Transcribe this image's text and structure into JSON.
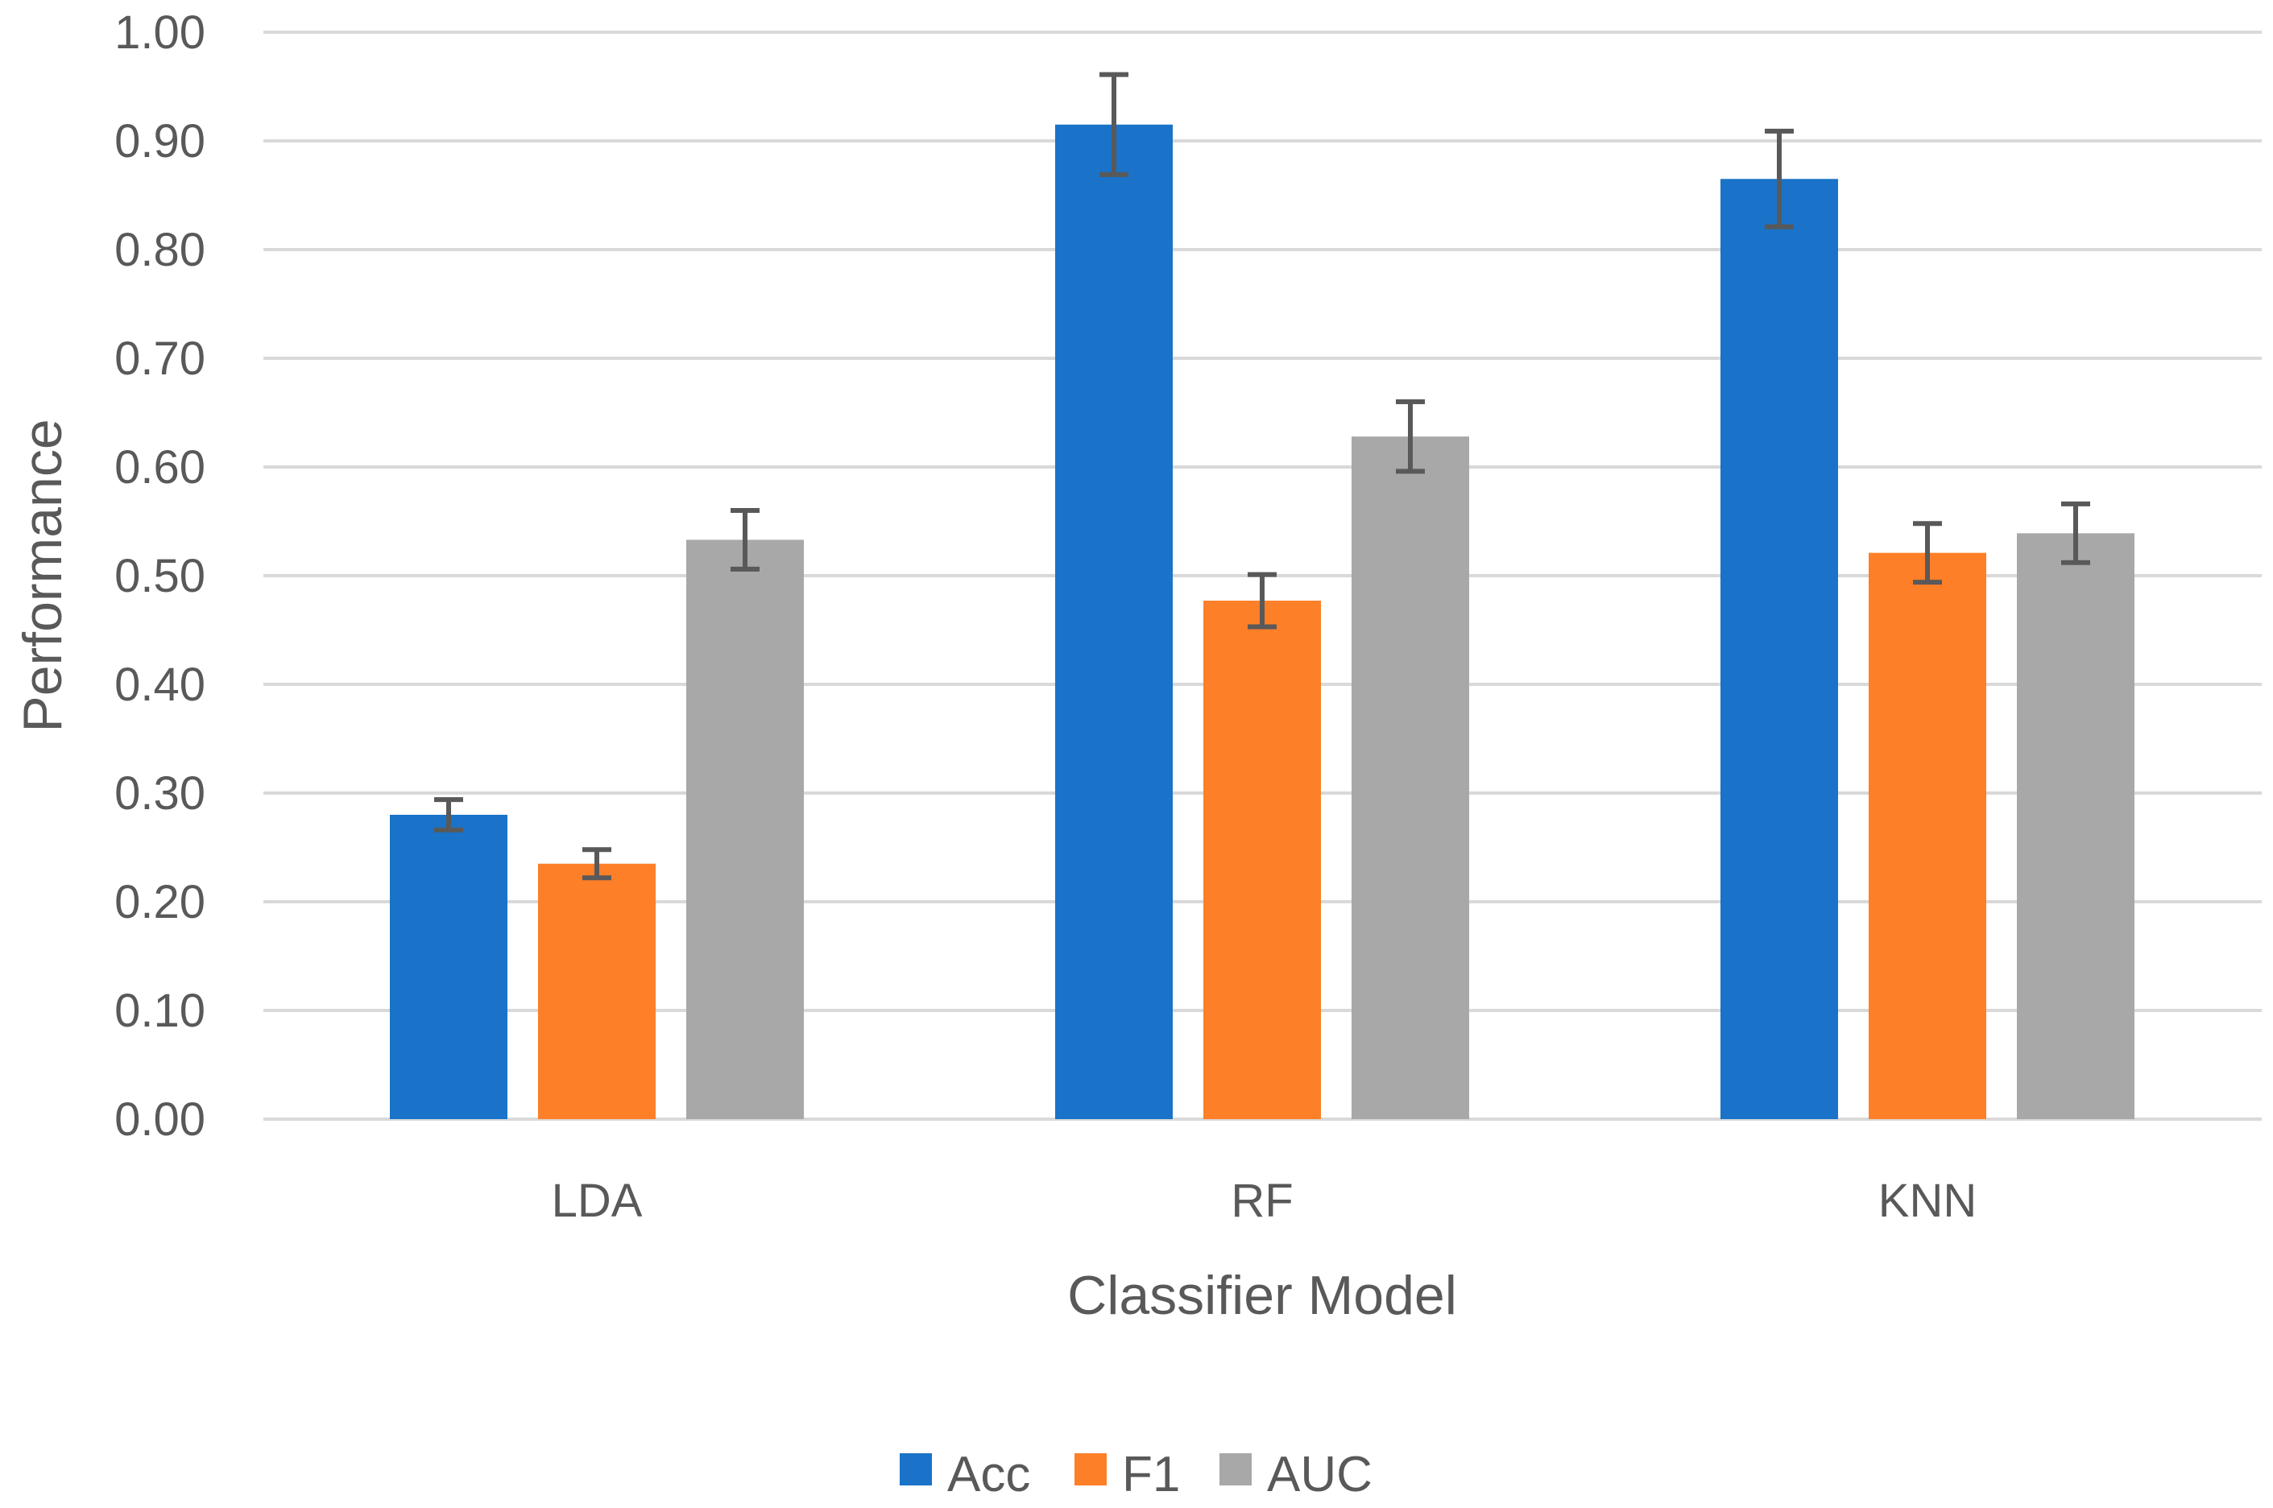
{
  "chart_data": {
    "type": "bar",
    "title": "",
    "xlabel": "Classifier Model",
    "ylabel": "Performance",
    "ylim": [
      0,
      1
    ],
    "yticks": [
      "0.00",
      "0.10",
      "0.20",
      "0.30",
      "0.40",
      "0.50",
      "0.60",
      "0.70",
      "0.80",
      "0.90",
      "1.00"
    ],
    "categories": [
      "LDA",
      "RF",
      "KNN"
    ],
    "grid": true,
    "legend_position": "bottom",
    "series": [
      {
        "name": "Acc",
        "color": "#1a73c8",
        "values": [
          0.28,
          0.915,
          0.865
        ],
        "errors": [
          0.014,
          0.046,
          0.044
        ]
      },
      {
        "name": "F1",
        "color": "#fd7f28",
        "values": [
          0.235,
          0.477,
          0.521
        ],
        "errors": [
          0.013,
          0.024,
          0.027
        ]
      },
      {
        "name": "AUC",
        "color": "#a8a8a8",
        "values": [
          0.533,
          0.628,
          0.539
        ],
        "errors": [
          0.027,
          0.032,
          0.027
        ]
      }
    ],
    "error_bar_color": "#595959",
    "grid_color": "#d9d9d9"
  }
}
